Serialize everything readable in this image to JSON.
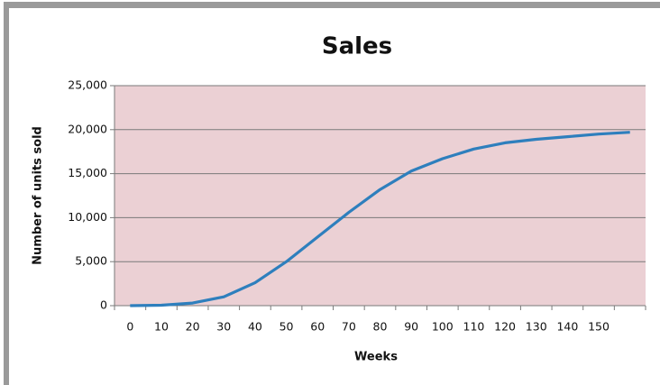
{
  "chart_data": {
    "type": "line",
    "title": "Sales",
    "x_label": "Weeks",
    "y_label": "Number of units sold",
    "categories": [
      0,
      10,
      20,
      30,
      40,
      50,
      60,
      70,
      80,
      90,
      100,
      110,
      120,
      130,
      140,
      150,
      null
    ],
    "series": [
      {
        "name": "Sales",
        "color": "#2e7fbd",
        "values": [
          0,
          50,
          300,
          1000,
          2600,
          5000,
          7800,
          10600,
          13200,
          15300,
          16700,
          17800,
          18500,
          18900,
          19200,
          19500,
          19700
        ]
      }
    ],
    "ylim": [
      0,
      25000
    ],
    "yticks": [
      0,
      {
        "value": 5000,
        "label": "5,000"
      },
      {
        "value": 10000,
        "label": "10,000"
      },
      {
        "value": 15000,
        "label": "15,000"
      },
      {
        "value": 20000,
        "label": "20,000"
      },
      {
        "value": 25000,
        "label": "25,000"
      }
    ],
    "grid": true,
    "plot_background": "#ebd0d4"
  }
}
